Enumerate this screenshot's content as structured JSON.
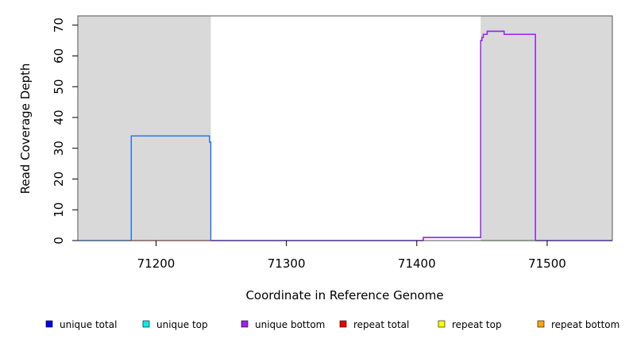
{
  "chart_data": {
    "type": "line",
    "title": "",
    "xlabel": "Coordinate in Reference Genome",
    "ylabel": "Read Coverage Depth",
    "xlim": [
      71140,
      71550
    ],
    "ylim": [
      0,
      73
    ],
    "x_ticks": [
      71200,
      71300,
      71400,
      71500
    ],
    "y_ticks": [
      0,
      10,
      20,
      30,
      40,
      50,
      60,
      70
    ],
    "grid": false,
    "shaded_regions": [
      {
        "x": [
          71140,
          71242
        ],
        "color": "#d9d9d9"
      },
      {
        "x": [
          71449,
          71550
        ],
        "color": "#d9d9d9"
      }
    ],
    "legend": {
      "placement": "bottom",
      "entries": [
        {
          "label": "unique total",
          "color": "#0000ee"
        },
        {
          "label": "unique top",
          "color": "#00eeee"
        },
        {
          "label": "unique bottom",
          "color": "#a020f0"
        },
        {
          "label": "repeat total",
          "color": "#ee0000"
        },
        {
          "label": "repeat top",
          "color": "#ffff00"
        },
        {
          "label": "repeat bottom",
          "color": "#ffa500"
        }
      ]
    },
    "series": [
      {
        "name": "unique total",
        "color": "#1e6ef0",
        "points": [
          [
            71140,
            0
          ],
          [
            71181,
            0
          ],
          [
            71181,
            34
          ],
          [
            71241,
            34
          ],
          [
            71241,
            32
          ],
          [
            71242,
            32
          ],
          [
            71242,
            0
          ],
          [
            71405,
            0
          ],
          [
            71405,
            1
          ],
          [
            71449,
            1
          ],
          [
            71449,
            65
          ],
          [
            71450,
            65
          ],
          [
            71450,
            66
          ],
          [
            71451,
            66
          ],
          [
            71451,
            67
          ],
          [
            71454,
            67
          ],
          [
            71454,
            68
          ],
          [
            71467,
            68
          ],
          [
            71467,
            67
          ],
          [
            71491,
            67
          ],
          [
            71491,
            0
          ],
          [
            71550,
            0
          ]
        ]
      },
      {
        "name": "unique bottom",
        "color": "#a020f0",
        "points": [
          [
            71242,
            0
          ],
          [
            71405,
            0
          ],
          [
            71405,
            1
          ],
          [
            71449,
            1
          ],
          [
            71449,
            65
          ],
          [
            71450,
            65
          ],
          [
            71450,
            66
          ],
          [
            71451,
            66
          ],
          [
            71451,
            67
          ],
          [
            71454,
            67
          ],
          [
            71454,
            68
          ],
          [
            71467,
            68
          ],
          [
            71467,
            67
          ],
          [
            71491,
            67
          ],
          [
            71491,
            0
          ],
          [
            71550,
            0
          ]
        ]
      },
      {
        "name": "repeat total",
        "color": "#ee6666",
        "points": [
          [
            71181,
            0
          ],
          [
            71242,
            0
          ]
        ]
      },
      {
        "name": "repeat top",
        "color": "#9fe09f",
        "points": [
          [
            71449,
            0
          ],
          [
            71491,
            0
          ]
        ]
      }
    ]
  }
}
